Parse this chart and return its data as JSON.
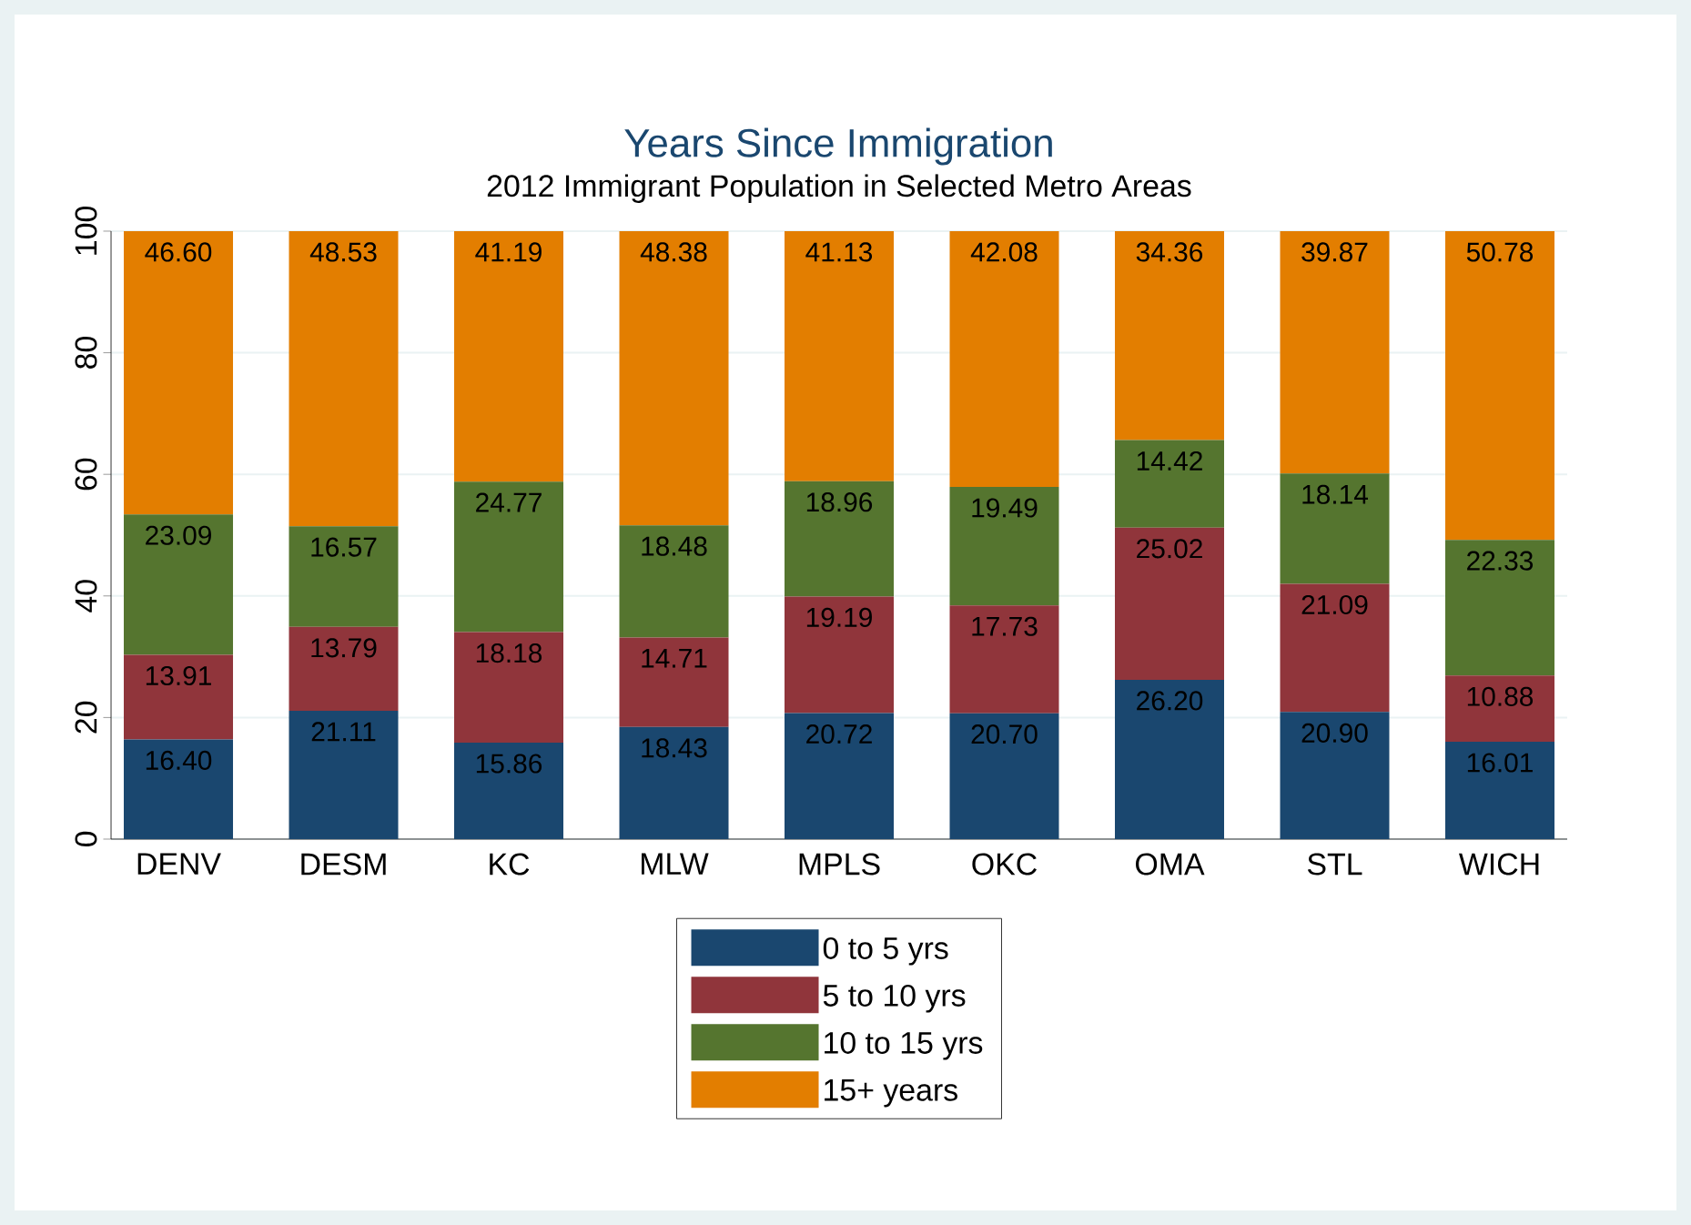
{
  "chart_data": {
    "type": "bar",
    "stacked": true,
    "title": "Years Since Immigration",
    "subtitle": "2012 Immigrant Population in Selected Metro Areas",
    "categories": [
      "DENV",
      "DESM",
      "KC",
      "MLW",
      "MPLS",
      "OKC",
      "OMA",
      "STL",
      "WICH"
    ],
    "series": [
      {
        "name": "0 to 5 yrs",
        "color": "#1a476f",
        "values": [
          16.4,
          21.11,
          15.86,
          18.43,
          20.72,
          20.7,
          26.2,
          20.9,
          16.01
        ],
        "value_labels": [
          "16.40",
          "21.11",
          "15.86",
          "18.43",
          "20.72",
          "20.70",
          "26.20",
          "20.90",
          "16.01"
        ]
      },
      {
        "name": "5 to 10 yrs",
        "color": "#90353b",
        "values": [
          13.91,
          13.79,
          18.18,
          14.71,
          19.19,
          17.73,
          25.02,
          21.09,
          10.88
        ],
        "value_labels": [
          "13.91",
          "13.79",
          "18.18",
          "14.71",
          "19.19",
          "17.73",
          "25.02",
          "21.09",
          "10.88"
        ]
      },
      {
        "name": "10 to 15 yrs",
        "color": "#55752f",
        "values": [
          23.09,
          16.57,
          24.77,
          18.48,
          18.96,
          19.49,
          14.42,
          18.14,
          22.33
        ],
        "value_labels": [
          "23.09",
          "16.57",
          "24.77",
          "18.48",
          "18.96",
          "19.49",
          "14.42",
          "18.14",
          "22.33"
        ]
      },
      {
        "name": "15+ years",
        "color": "#e37e00",
        "values": [
          46.6,
          48.53,
          41.19,
          48.38,
          41.13,
          42.08,
          34.36,
          39.87,
          50.78
        ],
        "value_labels": [
          "46.60",
          "48.53",
          "41.19",
          "48.38",
          "41.13",
          "42.08",
          "34.36",
          "39.87",
          "50.78"
        ]
      }
    ],
    "ylim": [
      0,
      100
    ],
    "yticks": [
      0,
      20,
      40,
      60,
      80,
      100
    ],
    "grid": "y",
    "legend": "bottom"
  }
}
